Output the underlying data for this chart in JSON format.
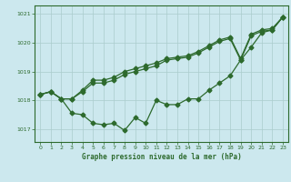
{
  "title": "Graphe pression niveau de la mer (hPa)",
  "bg_color": "#cce8ee",
  "grid_color": "#aacccc",
  "line_color": "#2d6a2d",
  "xlim": [
    -0.5,
    23.5
  ],
  "ylim": [
    1016.55,
    1021.3
  ],
  "yticks": [
    1017,
    1018,
    1019,
    1020,
    1021
  ],
  "xticks": [
    0,
    1,
    2,
    3,
    4,
    5,
    6,
    7,
    8,
    9,
    10,
    11,
    12,
    13,
    14,
    15,
    16,
    17,
    18,
    19,
    20,
    21,
    22,
    23
  ],
  "line_a": [
    1018.2,
    1018.3,
    1018.05,
    1017.55,
    1017.5,
    1017.2,
    1017.15,
    1017.2,
    1016.95,
    1017.4,
    1017.2,
    1018.0,
    1017.85,
    1017.85,
    1018.05,
    1018.05,
    1018.35,
    1018.6,
    1018.85,
    1019.4,
    1019.85,
    1020.35,
    1020.45,
    1020.9
  ],
  "line_b": [
    1018.2,
    1018.3,
    1018.05,
    1018.05,
    1018.3,
    1018.55,
    1018.65,
    1018.75,
    1018.95,
    1019.05,
    1019.15,
    1019.25,
    1019.4,
    1019.5,
    1019.55,
    1019.65,
    1019.85,
    1020.05,
    1020.15,
    1019.4,
    1020.25,
    1020.4,
    1020.45,
    1020.9
  ],
  "line_c": [
    1018.2,
    1018.3,
    1018.05,
    1018.05,
    1018.3,
    1018.55,
    1018.65,
    1018.75,
    1018.95,
    1019.05,
    1019.15,
    1019.25,
    1019.4,
    1019.5,
    1019.55,
    1019.65,
    1019.85,
    1020.05,
    1020.15,
    1019.4,
    1020.25,
    1020.4,
    1020.45,
    1020.9
  ]
}
